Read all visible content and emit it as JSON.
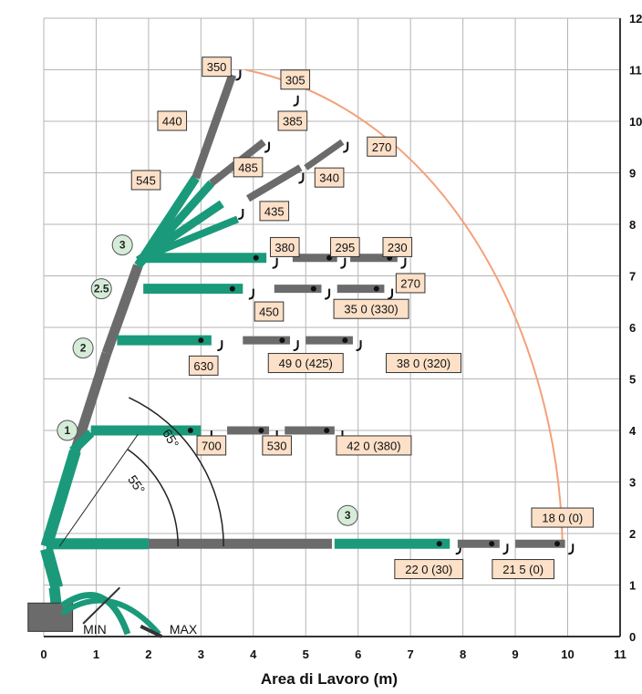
{
  "chart_data": {
    "type": "diagram",
    "title": "",
    "xlabel": "Area di Lavoro (m)",
    "ylabel": "",
    "x_ticks": [
      "0",
      "1",
      "2",
      "3",
      "4",
      "5",
      "6",
      "7",
      "8",
      "9",
      "10",
      "11"
    ],
    "y_ticks": [
      "0",
      "1",
      "2",
      "3",
      "4",
      "5",
      "6",
      "7",
      "8",
      "9",
      "10",
      "11",
      "12"
    ],
    "xlim": [
      0,
      11
    ],
    "ylim": [
      0,
      12
    ],
    "grid": true,
    "envelope_color": "#f4a07a",
    "boom_green": "#1a9a7a",
    "boom_gray": "#6b6b6b",
    "label_fill": "#fce0c8",
    "capacity_labels": [
      {
        "text": "350",
        "x": 3.3,
        "y": 11.05
      },
      {
        "text": "305",
        "x": 4.8,
        "y": 10.8
      },
      {
        "text": "440",
        "x": 2.45,
        "y": 10.0
      },
      {
        "text": "385",
        "x": 4.75,
        "y": 10.0
      },
      {
        "text": "270",
        "x": 6.45,
        "y": 9.5
      },
      {
        "text": "485",
        "x": 3.9,
        "y": 9.1
      },
      {
        "text": "545",
        "x": 1.95,
        "y": 8.85
      },
      {
        "text": "340",
        "x": 5.45,
        "y": 8.9
      },
      {
        "text": "435",
        "x": 4.4,
        "y": 8.25
      },
      {
        "text": "380",
        "x": 4.6,
        "y": 7.55
      },
      {
        "text": "295",
        "x": 5.75,
        "y": 7.55
      },
      {
        "text": "230",
        "x": 6.75,
        "y": 7.55
      },
      {
        "text": "270",
        "x": 7.0,
        "y": 6.85
      },
      {
        "text": "450",
        "x": 4.3,
        "y": 6.3
      },
      {
        "text": "35 0 (330)",
        "x": 6.25,
        "y": 6.35
      },
      {
        "text": "630",
        "x": 3.05,
        "y": 5.25
      },
      {
        "text": "49 0 (425)",
        "x": 5.0,
        "y": 5.3
      },
      {
        "text": "38 0 (320)",
        "x": 7.25,
        "y": 5.3
      },
      {
        "text": "700",
        "x": 3.2,
        "y": 3.7
      },
      {
        "text": "530",
        "x": 4.45,
        "y": 3.7
      },
      {
        "text": "42 0 (380)",
        "x": 6.3,
        "y": 3.7
      },
      {
        "text": "18 0 (0)",
        "x": 9.9,
        "y": 2.3
      },
      {
        "text": "22 0 (30)",
        "x": 7.35,
        "y": 1.3
      },
      {
        "text": "21 5 (0)",
        "x": 9.15,
        "y": 1.3
      }
    ],
    "circle_labels": [
      {
        "text": "3",
        "x": 1.5,
        "y": 7.6
      },
      {
        "text": "2.5",
        "x": 1.1,
        "y": 6.75
      },
      {
        "text": "2",
        "x": 0.75,
        "y": 5.6
      },
      {
        "text": "1",
        "x": 0.45,
        "y": 4.0
      },
      {
        "text": "3",
        "x": 5.8,
        "y": 2.35
      }
    ],
    "angle_labels": [
      {
        "text": "65°",
        "x": 2.35,
        "y": 3.8,
        "rotate": 60
      },
      {
        "text": "55°",
        "x": 1.7,
        "y": 2.9,
        "rotate": 55
      }
    ],
    "base_labels": [
      "MIN",
      "MAX"
    ]
  }
}
